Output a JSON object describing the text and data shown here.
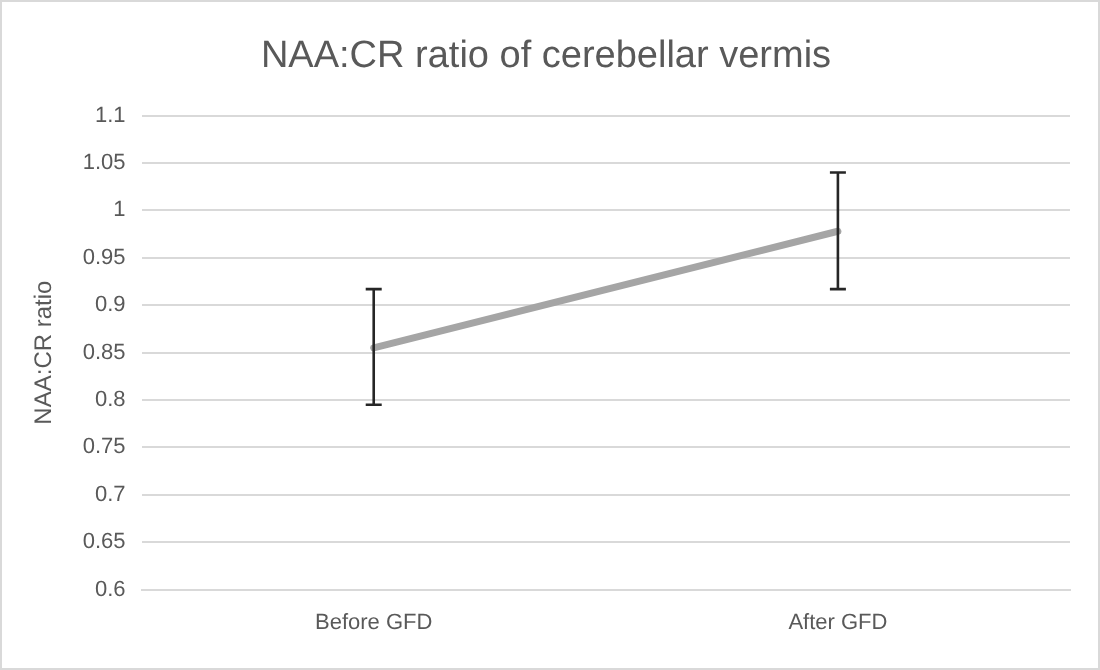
{
  "chart_data": {
    "type": "line",
    "title": "NAA:CR ratio of cerebellar vermis",
    "ylabel": "NAA:CR ratio",
    "categories": [
      "Before GFD",
      "After GFD"
    ],
    "values": [
      0.855,
      0.978
    ],
    "errors": [
      [
        0.795,
        0.917
      ],
      [
        0.917,
        1.04
      ]
    ],
    "color": "#a5a5a5",
    "ylim": [
      0.6,
      1.1
    ],
    "yticks": [
      0.6,
      0.65,
      0.7,
      0.75,
      0.8,
      0.85,
      0.9,
      0.95,
      1,
      1.05,
      1.1
    ],
    "grid": "y",
    "legend": false,
    "marker": "none",
    "line_style": "solid"
  }
}
